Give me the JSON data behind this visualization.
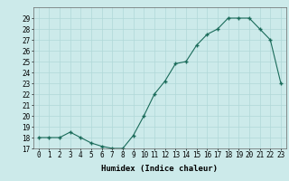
{
  "x": [
    0,
    1,
    2,
    3,
    4,
    5,
    6,
    7,
    8,
    9,
    10,
    11,
    12,
    13,
    14,
    15,
    16,
    17,
    18,
    19,
    20,
    21,
    22,
    23
  ],
  "y": [
    18,
    18,
    18,
    18.5,
    18,
    17.5,
    17.2,
    17,
    17,
    18.2,
    20,
    22,
    23.2,
    24.8,
    25,
    26.5,
    27.5,
    28,
    29,
    29,
    29,
    28,
    27,
    23
  ],
  "line_color": "#1a6b5a",
  "marker_color": "#1a6b5a",
  "bg_color": "#cceaea",
  "grid_color": "#b0d8d8",
  "xlabel": "Humidex (Indice chaleur)",
  "xlim": [
    -0.5,
    23.5
  ],
  "ylim": [
    17,
    30
  ],
  "yticks": [
    17,
    18,
    19,
    20,
    21,
    22,
    23,
    24,
    25,
    26,
    27,
    28,
    29
  ],
  "xticks": [
    0,
    1,
    2,
    3,
    4,
    5,
    6,
    7,
    8,
    9,
    10,
    11,
    12,
    13,
    14,
    15,
    16,
    17,
    18,
    19,
    20,
    21,
    22,
    23
  ],
  "xtick_labels": [
    "0",
    "1",
    "2",
    "3",
    "4",
    "5",
    "6",
    "7",
    "8",
    "9",
    "10",
    "11",
    "12",
    "13",
    "14",
    "15",
    "16",
    "17",
    "18",
    "19",
    "20",
    "21",
    "22",
    "23"
  ],
  "ytick_labels": [
    "17",
    "18",
    "19",
    "20",
    "21",
    "22",
    "23",
    "24",
    "25",
    "26",
    "27",
    "28",
    "29"
  ],
  "axis_fontsize": 6.5,
  "tick_fontsize": 5.5
}
